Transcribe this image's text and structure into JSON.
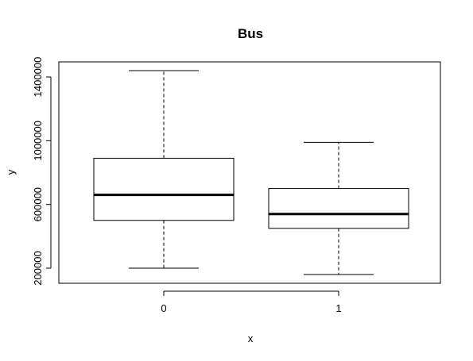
{
  "chart_data": {
    "type": "boxplot",
    "title": "Bus",
    "xlabel": "x",
    "ylabel": "y",
    "ylim": [
      100000,
      1500000
    ],
    "y_ticks": [
      200000,
      600000,
      1000000,
      1400000
    ],
    "y_tick_labels": [
      "200000",
      "600000",
      "1000000",
      "1400000"
    ],
    "categories": [
      "0",
      "1"
    ],
    "boxes": [
      {
        "category": "0",
        "whisker_low": 200000,
        "q1": 500000,
        "median": 660000,
        "q3": 890000,
        "whisker_high": 1440000
      },
      {
        "category": "1",
        "whisker_low": 160000,
        "q1": 450000,
        "median": 540000,
        "q3": 700000,
        "whisker_high": 990000
      }
    ],
    "grid": false,
    "legend": "none"
  }
}
